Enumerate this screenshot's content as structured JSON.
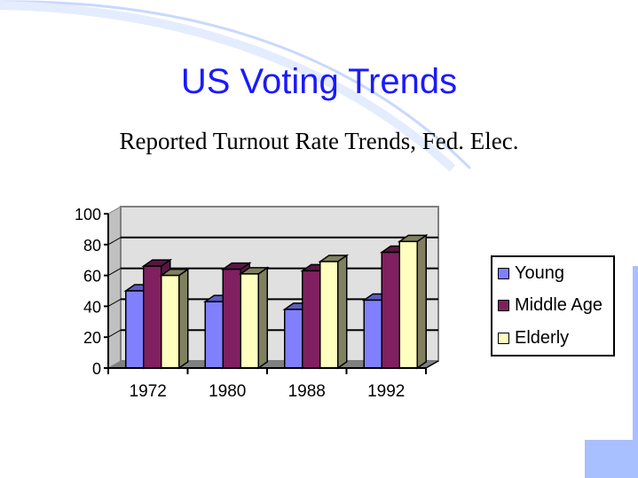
{
  "slide": {
    "title": "US Voting Trends",
    "subtitle": "Reported Turnout Rate Trends, Fed.  Elec."
  },
  "colors": {
    "title": "#1a1aff",
    "accent_decor": "#a8c0ff"
  },
  "chart_data": {
    "type": "bar",
    "style": "3d-clustered-column",
    "categories": [
      "1972",
      "1980",
      "1988",
      "1992"
    ],
    "series": [
      {
        "name": "Young",
        "values": [
          50,
          43,
          38,
          44
        ],
        "color": "#8080ff",
        "side": "#5c5cc0"
      },
      {
        "name": "Middle Age",
        "values": [
          66,
          64,
          63,
          75
        ],
        "color": "#802060",
        "side": "#5a1543"
      },
      {
        "name": "Elderly",
        "values": [
          60,
          61,
          69,
          82
        ],
        "color": "#ffffc0",
        "side": "#808060"
      }
    ],
    "yticks": [
      "0",
      "20",
      "40",
      "60",
      "80",
      "100"
    ],
    "ylim": [
      0,
      100
    ],
    "grid": true,
    "legend_position": "right"
  }
}
